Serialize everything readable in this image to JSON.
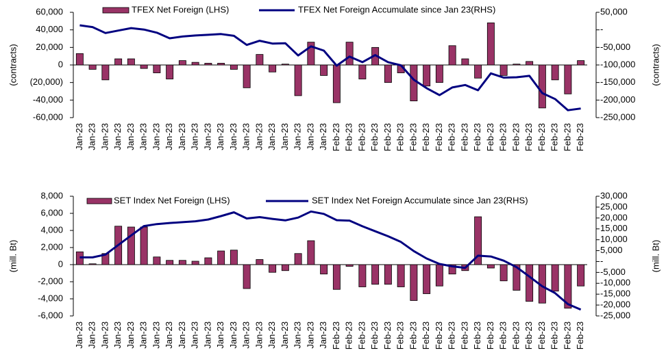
{
  "chart_data": [
    {
      "type": "combo",
      "ylabel": "(contracts)",
      "y2label": "(contracts)",
      "categories": [
        "Jan-23",
        "Jan-23",
        "Jan-23",
        "Jan-23",
        "Jan-23",
        "Jan-23",
        "Jan-23",
        "Jan-23",
        "Jan-23",
        "Jan-23",
        "Jan-23",
        "Jan-23",
        "Jan-23",
        "Jan-23",
        "Jan-23",
        "Jan-23",
        "Jan-23",
        "Jan-23",
        "Jan-23",
        "Jan-23",
        "Feb-23",
        "Feb-23",
        "Feb-23",
        "Feb-23",
        "Feb-23",
        "Feb-23",
        "Feb-23",
        "Feb-23",
        "Feb-23",
        "Feb-23",
        "Feb-23",
        "Feb-23",
        "Feb-23",
        "Feb-23",
        "Feb-23",
        "Feb-23",
        "Feb-23",
        "Feb-23",
        "Feb-23",
        "Feb-23"
      ],
      "series": [
        {
          "name": "TFEX Net Foreign (LHS)",
          "color": "#993366",
          "kind": "bar",
          "values": [
            13000,
            -5000,
            -17000,
            7000,
            7000,
            -4000,
            -9000,
            -16000,
            5000,
            3000,
            2000,
            2000,
            -5000,
            -26000,
            12000,
            -8000,
            1000,
            -35000,
            26000,
            -12000,
            -43000,
            26000,
            -16000,
            20000,
            -20000,
            -9000,
            -41000,
            -24000,
            -20000,
            22000,
            7000,
            -15000,
            48000,
            -12000,
            1000,
            4000,
            -49000,
            -17000,
            -33000,
            5000
          ]
        },
        {
          "name": "TFEX Net Foreign Accumulate since Jan 23(RHS)",
          "color": "#000080",
          "kind": "line",
          "axis": "y2",
          "values": [
            13000,
            8000,
            -9000,
            -2000,
            5000,
            1000,
            -8000,
            -24000,
            -19000,
            -16000,
            -14000,
            -12000,
            -17000,
            -43000,
            -31000,
            -39000,
            -38000,
            -73000,
            -47000,
            -59000,
            -102000,
            -76000,
            -92000,
            -72000,
            -92000,
            -101000,
            -142000,
            -166000,
            -186000,
            -164000,
            -157000,
            -172000,
            -124000,
            -136000,
            -135000,
            -131000,
            -180000,
            -197000,
            -229000,
            -224000
          ]
        }
      ],
      "ylim": [
        -60000,
        60000
      ],
      "yticks": [
        {
          "value": -60000,
          "label": "-60,000"
        },
        {
          "value": -40000,
          "label": "-40,000"
        },
        {
          "value": -20000,
          "label": "(20,000)"
        },
        0,
        {
          "value": 20000,
          "label": "20,000"
        },
        {
          "value": 40000,
          "label": "40,000"
        },
        {
          "value": 60000,
          "label": "60,000"
        }
      ],
      "y2lim": [
        -250000,
        50000
      ],
      "y2ticks": [
        {
          "value": -250000,
          "label": "-250,000"
        },
        {
          "value": -200000,
          "label": "-200,000"
        },
        {
          "value": -150000,
          "label": "-150,000"
        },
        {
          "value": -100000,
          "label": "-100,000"
        },
        {
          "value": -50000,
          "label": "-50,000"
        },
        {
          "value": 0,
          "label": "-"
        },
        {
          "value": 50000,
          "label": "50,000"
        }
      ]
    },
    {
      "type": "combo",
      "ylabel": "(mill. Bt)",
      "y2label": "(mill. Bt)",
      "categories": [
        "Jan-23",
        "Jan-23",
        "Jan-23",
        "Jan-23",
        "Jan-23",
        "Jan-23",
        "Jan-23",
        "Jan-23",
        "Jan-23",
        "Jan-23",
        "Jan-23",
        "Jan-23",
        "Jan-23",
        "Jan-23",
        "Jan-23",
        "Jan-23",
        "Jan-23",
        "Jan-23",
        "Jan-23",
        "Jan-23",
        "Feb-23",
        "Feb-23",
        "Feb-23",
        "Feb-23",
        "Feb-23",
        "Feb-23",
        "Feb-23",
        "Feb-23",
        "Feb-23",
        "Feb-23",
        "Feb-23",
        "Feb-23",
        "Feb-23",
        "Feb-23",
        "Feb-23",
        "Feb-23",
        "Feb-23",
        "Feb-23",
        "Feb-23",
        "Feb-23"
      ],
      "series": [
        {
          "name": "SET Index Net Foreign (LHS)",
          "color": "#993366",
          "kind": "bar",
          "values": [
            1500,
            100,
            1300,
            4500,
            4400,
            4400,
            900,
            500,
            500,
            400,
            800,
            1600,
            1700,
            -2800,
            600,
            -900,
            -700,
            1300,
            2800,
            -1100,
            -2900,
            -200,
            -2600,
            -2300,
            -2300,
            -2600,
            -4200,
            -3400,
            -2500,
            -1100,
            -700,
            5600,
            -400,
            -1900,
            -3000,
            -4300,
            -4500,
            -3100,
            -5100,
            -2500
          ]
        },
        {
          "name": "SET Index Net Foreign Accumulate since Jan 23(RHS)",
          "color": "#000080",
          "kind": "line",
          "axis": "y2",
          "values": [
            1900,
            1900,
            3200,
            7600,
            12000,
            16300,
            17200,
            17700,
            18100,
            18500,
            19300,
            20900,
            22600,
            19800,
            20400,
            19600,
            18900,
            20200,
            23000,
            21900,
            19000,
            18800,
            16200,
            13900,
            11600,
            9000,
            4800,
            1400,
            -1100,
            -2200,
            -2900,
            2700,
            2300,
            400,
            -2600,
            -6900,
            -11400,
            -14500,
            -19600,
            -22100
          ]
        }
      ],
      "ylim": [
        -6000,
        8000
      ],
      "yticks": [
        {
          "value": -6000,
          "label": "-6,000"
        },
        {
          "value": -4000,
          "label": "-4,000"
        },
        {
          "value": -2000,
          "label": "-2,000"
        },
        0,
        {
          "value": 2000,
          "label": "2,000"
        },
        {
          "value": 4000,
          "label": "4,000"
        },
        {
          "value": 6000,
          "label": "6,000"
        },
        {
          "value": 8000,
          "label": "8,000"
        }
      ],
      "y2lim": [
        -25000,
        30000
      ],
      "y2ticks": [
        {
          "value": -25000,
          "label": "-25,000"
        },
        {
          "value": -20000,
          "label": "-20,000"
        },
        {
          "value": -15000,
          "label": "-15,000"
        },
        {
          "value": -10000,
          "label": "-10,000"
        },
        {
          "value": -5000,
          "label": "-5,000"
        },
        {
          "value": 0,
          "label": "-"
        },
        {
          "value": 5000,
          "label": "5,000"
        },
        {
          "value": 10000,
          "label": "10,000"
        },
        {
          "value": 15000,
          "label": "15,000"
        },
        {
          "value": 20000,
          "label": "20,000"
        },
        {
          "value": 25000,
          "label": "25,000"
        },
        {
          "value": 30000,
          "label": "30,000"
        }
      ]
    }
  ]
}
